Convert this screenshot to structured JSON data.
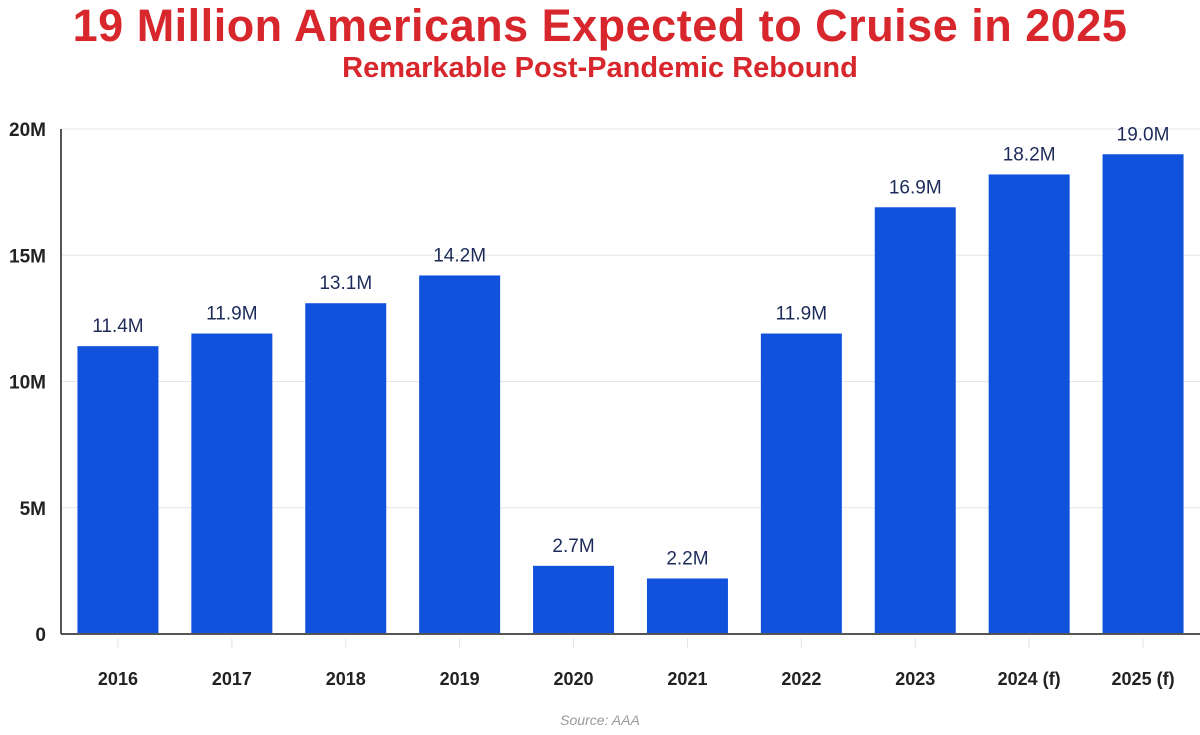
{
  "chart_data": {
    "type": "bar",
    "title": "19 Million Americans Expected to Cruise in 2025",
    "subtitle": "Remarkable Post-Pandemic Rebound",
    "categories": [
      "2016",
      "2017",
      "2018",
      "2019",
      "2020",
      "2021",
      "2022",
      "2023",
      "2024 (f)",
      "2025 (f)"
    ],
    "values": [
      11.4,
      11.9,
      13.1,
      14.2,
      2.7,
      2.2,
      11.9,
      16.9,
      18.2,
      19.0
    ],
    "data_labels": [
      "11.4M",
      "11.9M",
      "13.1M",
      "14.2M",
      "2.7M",
      "2.2M",
      "11.9M",
      "16.9M",
      "18.2M",
      "19.0M"
    ],
    "unit": "M",
    "ylim": [
      0,
      20
    ],
    "yticks": [
      0,
      5,
      10,
      15,
      20
    ],
    "ytick_labels": [
      "0",
      "5M",
      "10M",
      "15M",
      "20M"
    ],
    "xlabel": "",
    "ylabel": "",
    "grid": true,
    "source": "Source: AAA",
    "colors": {
      "bar": "#1152dc",
      "title": "#d7262c",
      "data_label": "#1d2b5a",
      "axis_label": "#222222"
    }
  }
}
